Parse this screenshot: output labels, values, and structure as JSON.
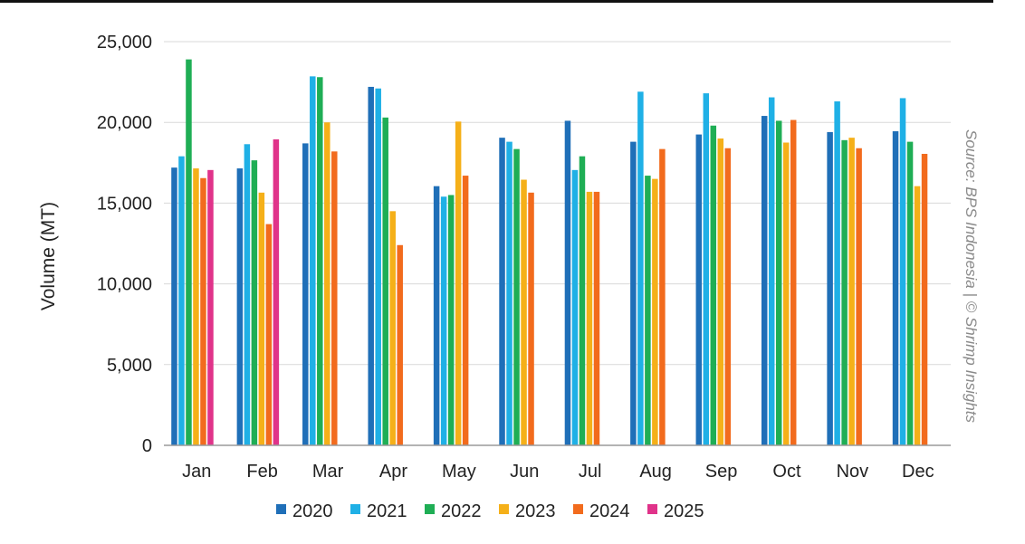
{
  "chart_data": {
    "type": "bar",
    "ylabel": "Volume (MT)",
    "xlabel": "",
    "ylim": [
      0,
      25000
    ],
    "yticks": [
      "0",
      "5,000",
      "10,000",
      "15,000",
      "20,000",
      "25,000"
    ],
    "ytick_values": [
      0,
      5000,
      10000,
      15000,
      20000,
      25000
    ],
    "grid": true,
    "legend_position": "bottom",
    "categories": [
      "Jan",
      "Feb",
      "Mar",
      "Apr",
      "May",
      "Jun",
      "Jul",
      "Aug",
      "Sep",
      "Oct",
      "Nov",
      "Dec"
    ],
    "series": [
      {
        "name": "2020",
        "color": "#1f6fb8",
        "values": [
          17200,
          17150,
          18700,
          22200,
          16050,
          19050,
          20100,
          18800,
          19250,
          20400,
          19400,
          19450
        ]
      },
      {
        "name": "2021",
        "color": "#1fb0e6",
        "values": [
          17900,
          18650,
          22850,
          22100,
          15400,
          18800,
          17050,
          21900,
          21800,
          21550,
          21300,
          21500
        ]
      },
      {
        "name": "2022",
        "color": "#1fae55",
        "values": [
          23900,
          17650,
          22800,
          20300,
          15500,
          18350,
          17900,
          16700,
          19800,
          20100,
          18900,
          18800
        ]
      },
      {
        "name": "2023",
        "color": "#f5b019",
        "values": [
          17150,
          15650,
          20000,
          14500,
          20050,
          16450,
          15700,
          16500,
          19000,
          18750,
          19050,
          16050
        ]
      },
      {
        "name": "2024",
        "color": "#f26b1d",
        "values": [
          16550,
          13700,
          18200,
          12400,
          16700,
          15650,
          15700,
          18350,
          18400,
          20150,
          18400,
          18050
        ]
      },
      {
        "name": "2025",
        "color": "#e0338a",
        "values": [
          17050,
          18950,
          null,
          null,
          null,
          null,
          null,
          null,
          null,
          null,
          null,
          null
        ]
      }
    ],
    "source": "Source: BPS Indonesia | © Shrimp Insights"
  }
}
